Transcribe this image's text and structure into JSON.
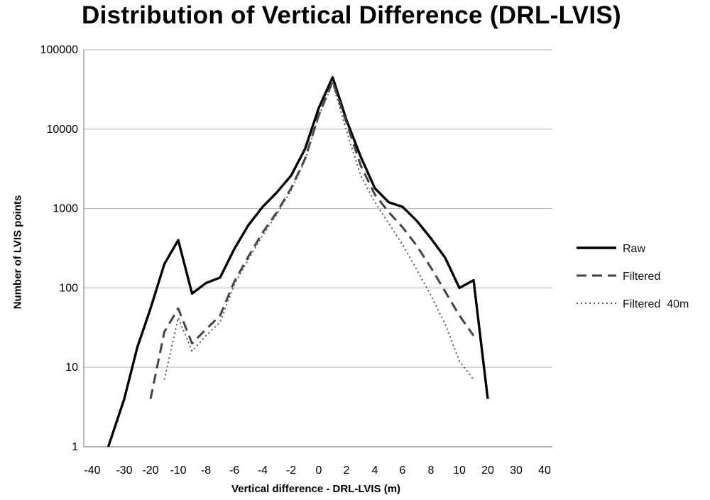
{
  "chart_data": {
    "type": "line",
    "title": "Distribution of Vertical Difference (DRL-LVIS)",
    "xlabel": "Vertical difference - DRL-LVIS (m)",
    "ylabel": "Number of LVIS points",
    "yscale": "log",
    "ylim": [
      1,
      100000
    ],
    "y_ticks": [
      1,
      10,
      100,
      1000,
      10000,
      100000
    ],
    "y_tick_labels": [
      "1",
      "10",
      "100",
      "1000",
      "10000",
      "100000"
    ],
    "x_tick_labels": [
      "-40",
      "-30",
      "-20",
      "-10",
      "-8",
      "-6",
      "-4",
      "-2",
      "0",
      "2",
      "4",
      "6",
      "8",
      "10",
      "20",
      "30",
      "40"
    ],
    "grid": "horizontal",
    "legend_position": "right",
    "series": [
      {
        "name": "Raw",
        "style": "solid",
        "color": "#000000",
        "points": [
          {
            "x": -35,
            "y": 1
          },
          {
            "x": -30,
            "y": 4
          },
          {
            "x": -25,
            "y": 18
          },
          {
            "x": -20,
            "y": 55
          },
          {
            "x": -15,
            "y": 200
          },
          {
            "x": -10,
            "y": 400
          },
          {
            "x": -9,
            "y": 85
          },
          {
            "x": -8,
            "y": 115
          },
          {
            "x": -7,
            "y": 135
          },
          {
            "x": -6,
            "y": 310
          },
          {
            "x": -5,
            "y": 620
          },
          {
            "x": -4,
            "y": 1050
          },
          {
            "x": -3,
            "y": 1600
          },
          {
            "x": -2,
            "y": 2600
          },
          {
            "x": -1,
            "y": 5600
          },
          {
            "x": 0,
            "y": 18500
          },
          {
            "x": 1,
            "y": 45000
          },
          {
            "x": 2,
            "y": 13000
          },
          {
            "x": 3,
            "y": 4500
          },
          {
            "x": 4,
            "y": 1800
          },
          {
            "x": 5,
            "y": 1200
          },
          {
            "x": 6,
            "y": 1050
          },
          {
            "x": 7,
            "y": 700
          },
          {
            "x": 8,
            "y": 420
          },
          {
            "x": 9,
            "y": 240
          },
          {
            "x": 10,
            "y": 100
          },
          {
            "x": 15,
            "y": 125
          },
          {
            "x": 20,
            "y": 4
          }
        ]
      },
      {
        "name": "Filtered",
        "style": "dashed",
        "color": "#444444",
        "points": [
          {
            "x": -20,
            "y": 4
          },
          {
            "x": -15,
            "y": 28
          },
          {
            "x": -10,
            "y": 55
          },
          {
            "x": -9,
            "y": 20
          },
          {
            "x": -8,
            "y": 30
          },
          {
            "x": -7,
            "y": 45
          },
          {
            "x": -6,
            "y": 120
          },
          {
            "x": -5,
            "y": 250
          },
          {
            "x": -4,
            "y": 500
          },
          {
            "x": -3,
            "y": 900
          },
          {
            "x": -2,
            "y": 1800
          },
          {
            "x": -1,
            "y": 4200
          },
          {
            "x": 0,
            "y": 15000
          },
          {
            "x": 1,
            "y": 40000
          },
          {
            "x": 2,
            "y": 12000
          },
          {
            "x": 3,
            "y": 3500
          },
          {
            "x": 4,
            "y": 1500
          },
          {
            "x": 5,
            "y": 900
          },
          {
            "x": 6,
            "y": 580
          },
          {
            "x": 7,
            "y": 340
          },
          {
            "x": 8,
            "y": 180
          },
          {
            "x": 9,
            "y": 90
          },
          {
            "x": 10,
            "y": 45
          },
          {
            "x": 15,
            "y": 25
          }
        ]
      },
      {
        "name": "Filtered  40m",
        "style": "dotted",
        "color": "#555555",
        "points": [
          {
            "x": -15,
            "y": 7
          },
          {
            "x": -10,
            "y": 42
          },
          {
            "x": -9,
            "y": 16
          },
          {
            "x": -8,
            "y": 25
          },
          {
            "x": -7,
            "y": 37
          },
          {
            "x": -6,
            "y": 110
          },
          {
            "x": -5,
            "y": 230
          },
          {
            "x": -4,
            "y": 460
          },
          {
            "x": -3,
            "y": 850
          },
          {
            "x": -2,
            "y": 1700
          },
          {
            "x": -1,
            "y": 4000
          },
          {
            "x": 0,
            "y": 14500
          },
          {
            "x": 1,
            "y": 38000
          },
          {
            "x": 2,
            "y": 9500
          },
          {
            "x": 3,
            "y": 2600
          },
          {
            "x": 4,
            "y": 1200
          },
          {
            "x": 5,
            "y": 650
          },
          {
            "x": 6,
            "y": 350
          },
          {
            "x": 7,
            "y": 170
          },
          {
            "x": 8,
            "y": 80
          },
          {
            "x": 9,
            "y": 35
          },
          {
            "x": 10,
            "y": 12
          },
          {
            "x": 15,
            "y": 7
          }
        ]
      }
    ]
  }
}
